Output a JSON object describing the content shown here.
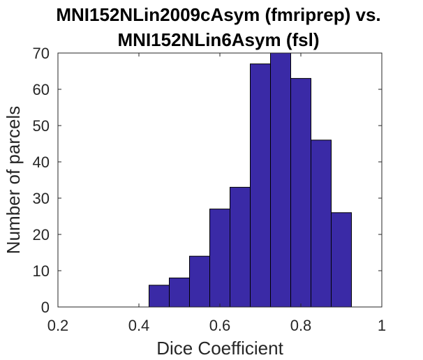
{
  "chart_data": {
    "type": "bar",
    "title_lines": [
      "MNI152NLin2009cAsym (fmriprep) vs.",
      "MNI152NLin6Asym (fsl)"
    ],
    "xlabel": "Dice Coefficient",
    "ylabel": "Number of parcels",
    "xlim": [
      0.2,
      1
    ],
    "ylim": [
      0,
      70
    ],
    "xticks": [
      "0.2",
      "0.4",
      "0.6",
      "0.8",
      "1"
    ],
    "yticks": [
      "0",
      "10",
      "20",
      "30",
      "40",
      "50",
      "60",
      "70"
    ],
    "bin_width": 0.05,
    "bins": [
      {
        "start": 0.425,
        "value": 6
      },
      {
        "start": 0.475,
        "value": 8
      },
      {
        "start": 0.525,
        "value": 14
      },
      {
        "start": 0.575,
        "value": 27
      },
      {
        "start": 0.625,
        "value": 33
      },
      {
        "start": 0.675,
        "value": 67
      },
      {
        "start": 0.725,
        "value": 70
      },
      {
        "start": 0.775,
        "value": 63
      },
      {
        "start": 0.825,
        "value": 46
      },
      {
        "start": 0.875,
        "value": 26
      }
    ],
    "bar_color": "#3a2aa6",
    "grid": false,
    "legend": "none"
  }
}
